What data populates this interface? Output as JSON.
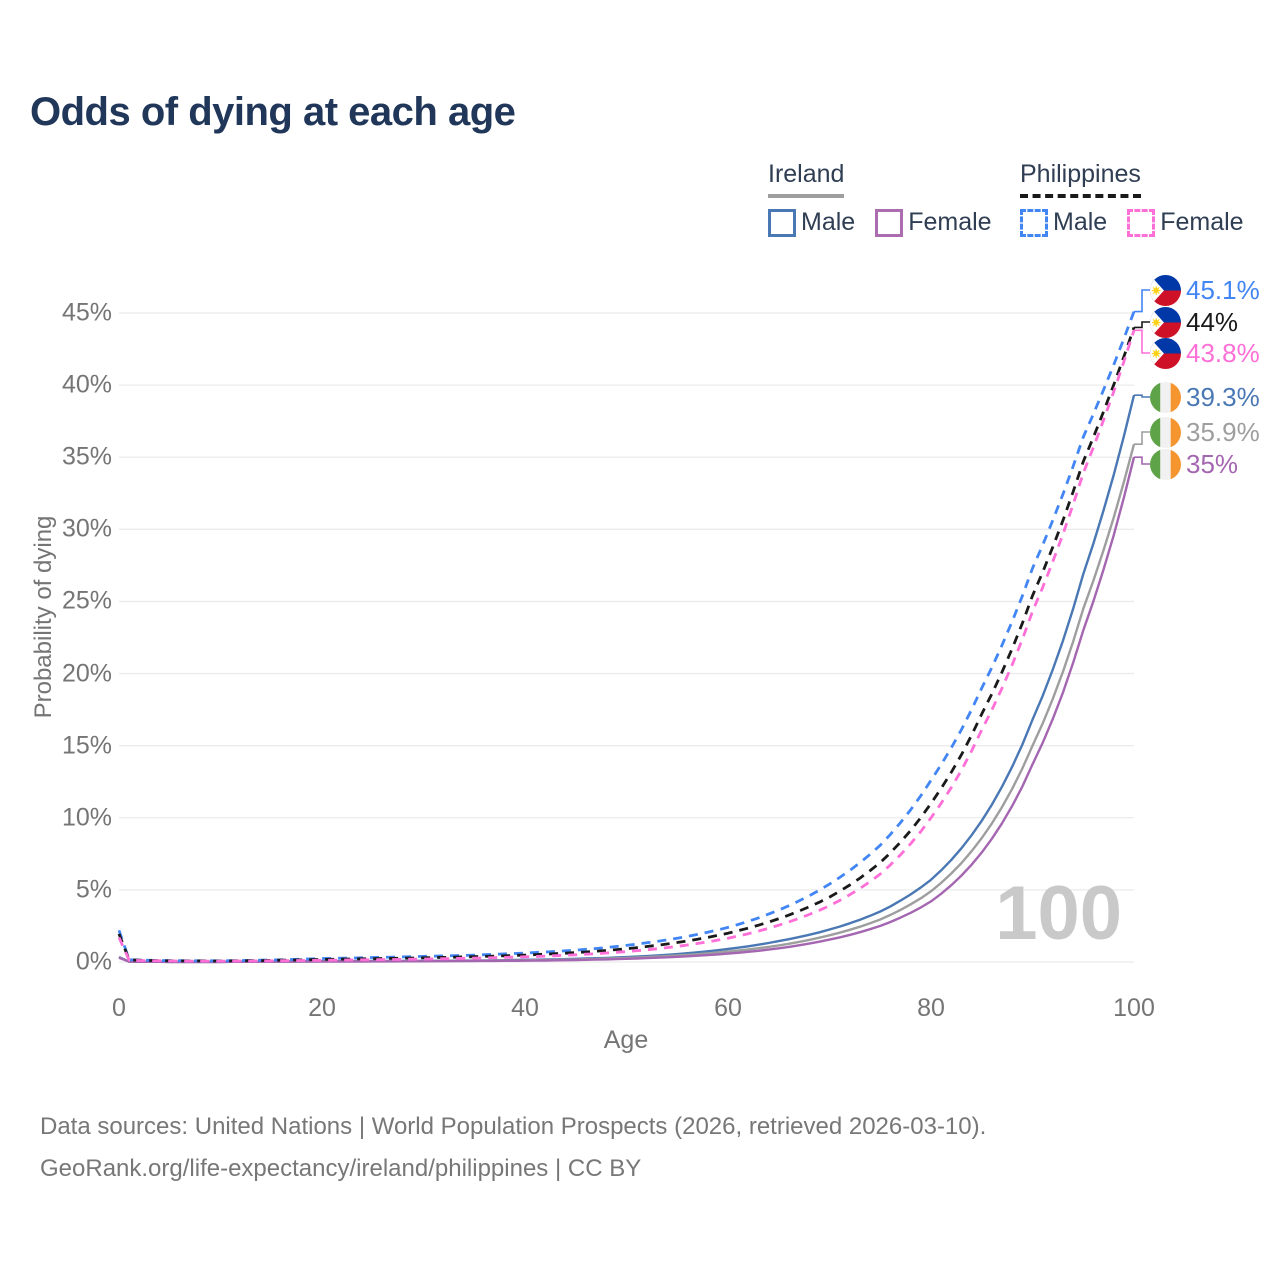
{
  "title": "Odds of dying at each age",
  "watermark_age": "100",
  "legend": {
    "groups": [
      {
        "name": "Ireland",
        "underline": "solid-gray",
        "items": [
          {
            "label": "Male",
            "color": "#4a78b5",
            "dash": false
          },
          {
            "label": "Female",
            "color": "#ab6cb0",
            "dash": false
          }
        ]
      },
      {
        "name": "Philippines",
        "underline": "dashed-black",
        "items": [
          {
            "label": "Male",
            "color": "#4285f4",
            "dash": true
          },
          {
            "label": "Female",
            "color": "#ff6fd8",
            "dash": true
          }
        ]
      }
    ]
  },
  "axes": {
    "x": {
      "label": "Age",
      "ticks": [
        0,
        20,
        40,
        60,
        80,
        100
      ]
    },
    "y": {
      "label": "Probability of dying",
      "ticks": [
        {
          "label": "0%",
          "value": 0
        },
        {
          "label": "5%",
          "value": 5
        },
        {
          "label": "10%",
          "value": 10
        },
        {
          "label": "15%",
          "value": 15
        },
        {
          "label": "20%",
          "value": 20
        },
        {
          "label": "25%",
          "value": 25
        },
        {
          "label": "30%",
          "value": 30
        },
        {
          "label": "35%",
          "value": 35
        },
        {
          "label": "40%",
          "value": 40
        },
        {
          "label": "45%",
          "value": 45
        }
      ]
    }
  },
  "end_labels": [
    {
      "text": "45.1%",
      "flag": "ph",
      "series": "Philippines Male",
      "color": "#4285f4"
    },
    {
      "text": "44%",
      "flag": "ph",
      "series": "Philippines (both sexes)",
      "color": "#1a1a1a"
    },
    {
      "text": "43.8%",
      "flag": "ph",
      "series": "Philippines Female",
      "color": "#ff6fd8"
    },
    {
      "text": "39.3%",
      "flag": "ie",
      "series": "Ireland Male",
      "color": "#4a78b5"
    },
    {
      "text": "35.9%",
      "flag": "ie",
      "series": "Ireland (both sexes)",
      "color": "#9e9e9e"
    },
    {
      "text": "35%",
      "flag": "ie",
      "series": "Ireland Female",
      "color": "#a466b0"
    }
  ],
  "footer": {
    "line1": "Data sources: United Nations | World Population Prospects (2026, retrieved 2026-03-10).",
    "line2": "GeoRank.org/life-expectancy/ireland/philippines | CC BY"
  },
  "colors": {
    "title": "#21375a",
    "legend_text": "#2f3e53",
    "axis_text": "#757575",
    "grid": "#ebebeb",
    "watermark": "#c9c9c9",
    "ireland_male": "#4a78b5",
    "ireland_total": "#9e9e9e",
    "ireland_female": "#a466b0",
    "philippines_male": "#4285f4",
    "philippines_total": "#1a1a1a",
    "philippines_female": "#ff6fd8"
  },
  "chart_data": {
    "type": "line",
    "title": "Odds of dying at each age",
    "xlabel": "Age",
    "ylabel": "Probability of dying",
    "xlim": [
      0,
      100
    ],
    "ylim_percent": [
      0,
      47
    ],
    "grid": "horizontal-only",
    "legend_position": "top-right",
    "x_ages": [
      0,
      1,
      5,
      10,
      15,
      20,
      25,
      30,
      35,
      40,
      45,
      50,
      55,
      60,
      65,
      70,
      75,
      80,
      85,
      90,
      95,
      100
    ],
    "series": [
      {
        "name": "Ireland Male",
        "country": "Ireland",
        "sex": "Male",
        "style": "solid",
        "color": "#4a78b5",
        "end_label": "39.3%",
        "values_percent": [
          0.35,
          0.03,
          0.01,
          0.01,
          0.03,
          0.06,
          0.07,
          0.08,
          0.1,
          0.15,
          0.22,
          0.34,
          0.55,
          0.9,
          1.45,
          2.25,
          3.5,
          5.7,
          9.8,
          16.8,
          26.9,
          39.3
        ]
      },
      {
        "name": "Ireland (both sexes)",
        "country": "Ireland",
        "sex": "Total",
        "style": "solid",
        "color": "#9e9e9e",
        "end_label": "35.9%",
        "values_percent": [
          0.32,
          0.03,
          0.01,
          0.01,
          0.02,
          0.04,
          0.05,
          0.06,
          0.08,
          0.12,
          0.18,
          0.28,
          0.45,
          0.72,
          1.15,
          1.85,
          2.95,
          4.9,
          8.6,
          15.0,
          24.5,
          35.9
        ]
      },
      {
        "name": "Ireland Female",
        "country": "Ireland",
        "sex": "Female",
        "style": "solid",
        "color": "#a466b0",
        "end_label": "35%",
        "values_percent": [
          0.3,
          0.02,
          0.01,
          0.01,
          0.02,
          0.03,
          0.04,
          0.05,
          0.07,
          0.09,
          0.14,
          0.22,
          0.36,
          0.58,
          0.95,
          1.55,
          2.5,
          4.2,
          7.6,
          13.7,
          23.0,
          35.0
        ]
      },
      {
        "name": "Philippines Male",
        "country": "Philippines",
        "sex": "Male",
        "style": "dashed",
        "color": "#4285f4",
        "end_label": "45.1%",
        "values_percent": [
          2.2,
          0.16,
          0.09,
          0.08,
          0.14,
          0.24,
          0.31,
          0.39,
          0.48,
          0.62,
          0.82,
          1.15,
          1.65,
          2.4,
          3.6,
          5.4,
          8.1,
          12.6,
          19.0,
          27.3,
          36.4,
          45.1
        ]
      },
      {
        "name": "Philippines (both sexes)",
        "country": "Philippines",
        "sex": "Total",
        "style": "dashed",
        "color": "#1a1a1a",
        "end_label": "44%",
        "values_percent": [
          1.95,
          0.14,
          0.08,
          0.07,
          0.11,
          0.18,
          0.23,
          0.29,
          0.37,
          0.48,
          0.65,
          0.92,
          1.35,
          2.0,
          3.0,
          4.5,
          6.9,
          11.0,
          17.2,
          25.4,
          34.7,
          44.0
        ]
      },
      {
        "name": "Philippines Female",
        "country": "Philippines",
        "sex": "Female",
        "style": "dashed",
        "color": "#ff6fd8",
        "end_label": "43.8%",
        "values_percent": [
          1.7,
          0.12,
          0.07,
          0.06,
          0.08,
          0.12,
          0.16,
          0.2,
          0.27,
          0.36,
          0.5,
          0.72,
          1.08,
          1.65,
          2.55,
          3.9,
          6.1,
          10.0,
          16.1,
          24.3,
          33.9,
          43.8
        ]
      }
    ]
  }
}
